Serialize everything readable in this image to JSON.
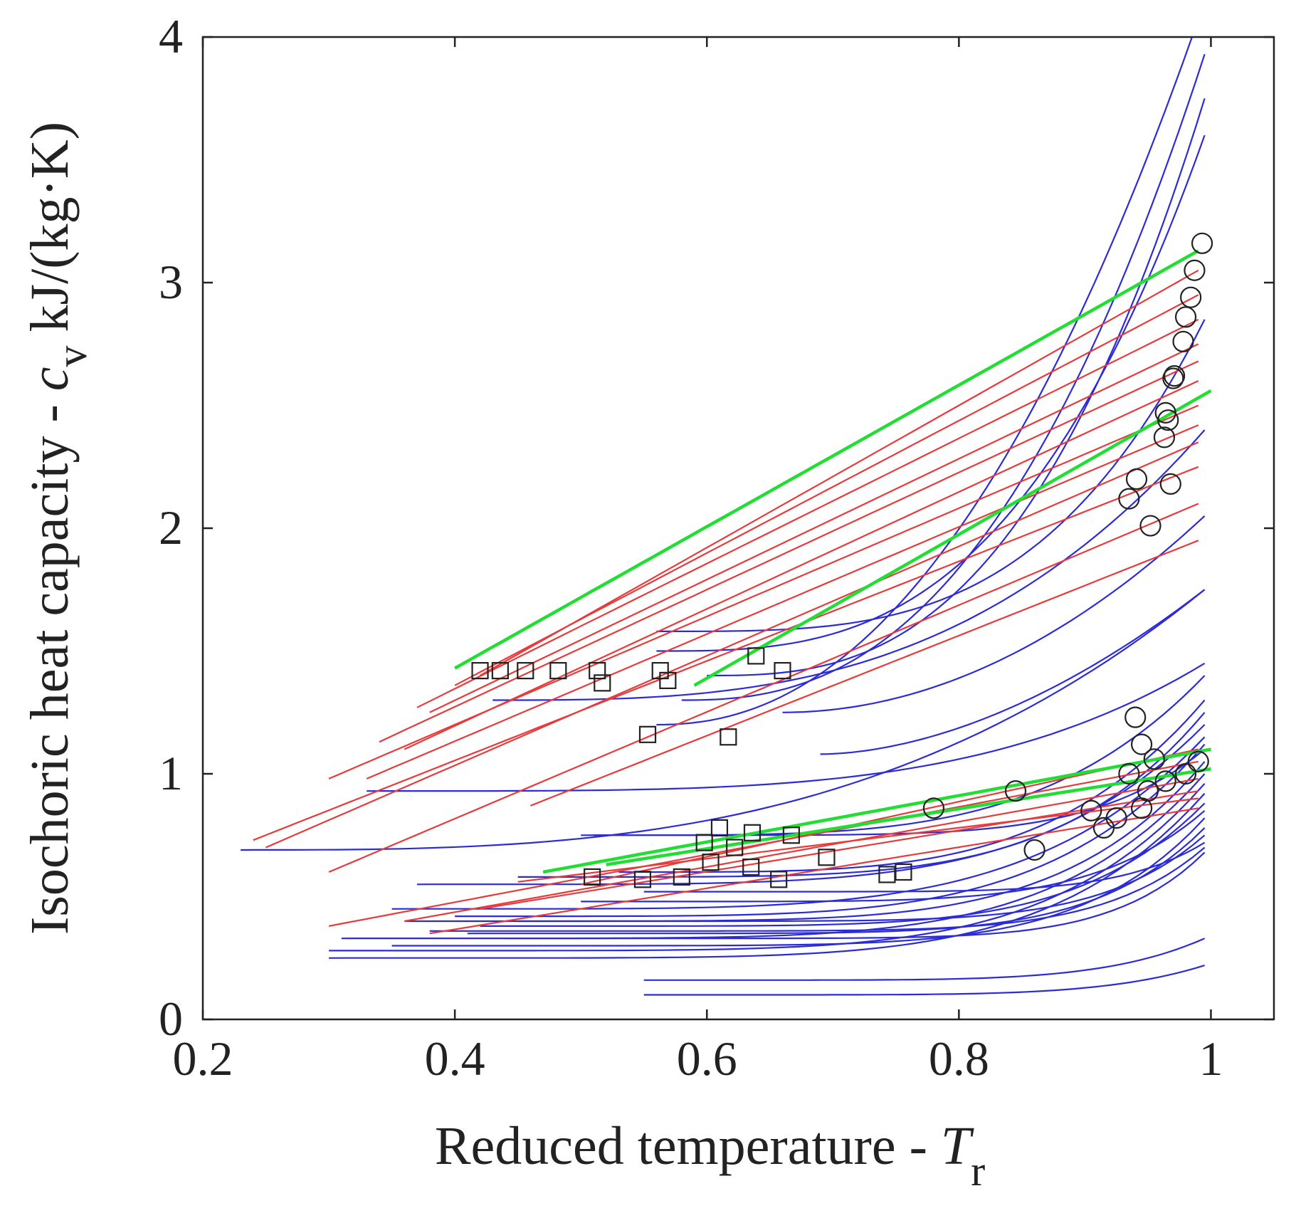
{
  "chart_data": {
    "type": "line",
    "xlabel": {
      "text": "Reduced temperature - ",
      "symbol": "T",
      "subscript": "r"
    },
    "ylabel": {
      "text": "Isochoric heat capacity - ",
      "symbol": "c",
      "subscript": "v",
      "unit": " kJ/(kg·K)"
    },
    "xlim": [
      0.2,
      1.05
    ],
    "ylim": [
      0,
      4
    ],
    "xticks": [
      0.2,
      0.4,
      0.6,
      0.8,
      1.0
    ],
    "xtick_labels": [
      "0.2",
      "0.4",
      "0.6",
      "0.8",
      "1"
    ],
    "yticks": [
      0,
      1,
      2,
      3,
      4
    ],
    "ytick_labels": [
      "0",
      "1",
      "2",
      "3",
      "4"
    ],
    "grid": false,
    "colors": {
      "blue": "#2b2bd9",
      "red": "#e83a3a",
      "green": "#22dd33",
      "marker": "#222222",
      "frame": "#222222"
    },
    "series": [
      {
        "name": "green-1",
        "color": "green",
        "kind": "linear",
        "x0": 0.4,
        "y0": 1.43,
        "x1": 0.99,
        "y1": 3.13
      },
      {
        "name": "green-2",
        "color": "green",
        "kind": "linear",
        "x0": 0.59,
        "y0": 1.36,
        "x1": 1.0,
        "y1": 2.56
      },
      {
        "name": "green-3",
        "color": "green",
        "kind": "linear",
        "x0": 0.47,
        "y0": 0.6,
        "x1": 1.0,
        "y1": 1.1
      },
      {
        "name": "green-4",
        "color": "green",
        "kind": "linear",
        "x0": 0.52,
        "y0": 0.63,
        "x1": 1.0,
        "y1": 1.02
      },
      {
        "name": "red-1",
        "color": "red",
        "kind": "linear",
        "x0": 0.42,
        "y0": 1.4,
        "x1": 0.99,
        "y1": 3.05
      },
      {
        "name": "red-2",
        "color": "red",
        "kind": "linear",
        "x0": 0.4,
        "y0": 1.36,
        "x1": 0.99,
        "y1": 2.95
      },
      {
        "name": "red-3",
        "color": "red",
        "kind": "linear",
        "x0": 0.37,
        "y0": 1.27,
        "x1": 0.99,
        "y1": 2.85
      },
      {
        "name": "red-4",
        "color": "red",
        "kind": "linear",
        "x0": 0.38,
        "y0": 1.25,
        "x1": 0.99,
        "y1": 2.75
      },
      {
        "name": "red-5",
        "color": "red",
        "kind": "linear",
        "x0": 0.34,
        "y0": 1.13,
        "x1": 0.99,
        "y1": 2.68
      },
      {
        "name": "red-6",
        "color": "red",
        "kind": "linear",
        "x0": 0.36,
        "y0": 1.1,
        "x1": 0.99,
        "y1": 2.6
      },
      {
        "name": "red-7",
        "color": "red",
        "kind": "linear",
        "x0": 0.3,
        "y0": 0.98,
        "x1": 0.99,
        "y1": 2.5
      },
      {
        "name": "red-8",
        "color": "red",
        "kind": "linear",
        "x0": 0.33,
        "y0": 0.98,
        "x1": 0.99,
        "y1": 2.42
      },
      {
        "name": "red-9",
        "color": "red",
        "kind": "linear",
        "x0": 0.25,
        "y0": 0.7,
        "x1": 0.99,
        "y1": 2.35
      },
      {
        "name": "red-10",
        "color": "red",
        "kind": "linear",
        "x0": 0.24,
        "y0": 0.73,
        "x1": 0.99,
        "y1": 2.25
      },
      {
        "name": "red-11",
        "color": "red",
        "kind": "linear",
        "x0": 0.3,
        "y0": 0.6,
        "x1": 0.99,
        "y1": 2.1
      },
      {
        "name": "red-12",
        "color": "red",
        "kind": "linear",
        "x0": 0.46,
        "y0": 0.87,
        "x1": 0.99,
        "y1": 1.95
      },
      {
        "name": "red-13",
        "color": "red",
        "kind": "linear",
        "x0": 0.5,
        "y0": 0.55,
        "x1": 0.99,
        "y1": 1.1
      },
      {
        "name": "red-14",
        "color": "red",
        "kind": "linear",
        "x0": 0.3,
        "y0": 0.38,
        "x1": 0.99,
        "y1": 1.05
      },
      {
        "name": "red-15",
        "color": "red",
        "kind": "linear",
        "x0": 0.36,
        "y0": 0.4,
        "x1": 0.99,
        "y1": 0.98
      },
      {
        "name": "red-16",
        "color": "red",
        "kind": "linear",
        "x0": 0.42,
        "y0": 0.45,
        "x1": 0.99,
        "y1": 0.93
      },
      {
        "name": "red-17",
        "color": "red",
        "kind": "linear",
        "x0": 0.45,
        "y0": 0.56,
        "x1": 0.99,
        "y1": 0.9
      },
      {
        "name": "red-18",
        "color": "red",
        "kind": "linear",
        "x0": 0.38,
        "y0": 0.35,
        "x1": 0.99,
        "y1": 0.86
      },
      {
        "name": "blue-1",
        "color": "blue",
        "kind": "power",
        "x0": 0.56,
        "y0": 1.2,
        "x1": 0.985,
        "y1": 4.0,
        "p": 2.2
      },
      {
        "name": "blue-2",
        "color": "blue",
        "kind": "power",
        "x0": 0.58,
        "y0": 1.3,
        "x1": 0.995,
        "y1": 3.93,
        "p": 2.5
      },
      {
        "name": "blue-3",
        "color": "blue",
        "kind": "power",
        "x0": 0.6,
        "y0": 1.4,
        "x1": 0.995,
        "y1": 3.75,
        "p": 2.8
      },
      {
        "name": "blue-4",
        "color": "blue",
        "kind": "power",
        "x0": 0.56,
        "y0": 1.5,
        "x1": 0.995,
        "y1": 3.6,
        "p": 3.0
      },
      {
        "name": "blue-5",
        "color": "blue",
        "kind": "power",
        "x0": 0.56,
        "y0": 1.58,
        "x1": 0.995,
        "y1": 2.85,
        "p": 3.5
      },
      {
        "name": "blue-6",
        "color": "blue",
        "kind": "power",
        "x0": 0.43,
        "y0": 1.3,
        "x1": 0.995,
        "y1": 2.4,
        "p": 3.0
      },
      {
        "name": "blue-7",
        "color": "blue",
        "kind": "power",
        "x0": 0.66,
        "y0": 1.25,
        "x1": 0.995,
        "y1": 2.05,
        "p": 2.0
      },
      {
        "name": "blue-8",
        "color": "blue",
        "kind": "power",
        "x0": 0.69,
        "y0": 1.08,
        "x1": 0.995,
        "y1": 1.75,
        "p": 1.8
      },
      {
        "name": "blue-9",
        "color": "blue",
        "kind": "power",
        "x0": 0.23,
        "y0": 0.69,
        "x1": 0.995,
        "y1": 1.75,
        "p": 3.0
      },
      {
        "name": "blue-10",
        "color": "blue",
        "kind": "power",
        "x0": 0.33,
        "y0": 0.93,
        "x1": 0.995,
        "y1": 1.45,
        "p": 4.0
      },
      {
        "name": "blue-11",
        "color": "blue",
        "kind": "power",
        "x0": 0.51,
        "y0": 0.75,
        "x1": 0.995,
        "y1": 1.4,
        "p": 4.0
      },
      {
        "name": "blue-12",
        "color": "blue",
        "kind": "power",
        "x0": 0.53,
        "y0": 0.6,
        "x1": 0.995,
        "y1": 1.3,
        "p": 4.0
      },
      {
        "name": "blue-13",
        "color": "blue",
        "kind": "power",
        "x0": 0.45,
        "y0": 0.58,
        "x1": 0.995,
        "y1": 1.25,
        "p": 5.0
      },
      {
        "name": "blue-14",
        "color": "blue",
        "kind": "power",
        "x0": 0.37,
        "y0": 0.55,
        "x1": 0.995,
        "y1": 1.2,
        "p": 5.0
      },
      {
        "name": "blue-15",
        "color": "blue",
        "kind": "power",
        "x0": 0.35,
        "y0": 0.45,
        "x1": 0.995,
        "y1": 1.15,
        "p": 5.0
      },
      {
        "name": "blue-16",
        "color": "blue",
        "kind": "power",
        "x0": 0.4,
        "y0": 0.42,
        "x1": 0.995,
        "y1": 1.12,
        "p": 5.0
      },
      {
        "name": "blue-17",
        "color": "blue",
        "kind": "power",
        "x0": 0.36,
        "y0": 0.4,
        "x1": 0.995,
        "y1": 1.05,
        "p": 6.0
      },
      {
        "name": "blue-18",
        "color": "blue",
        "kind": "power",
        "x0": 0.31,
        "y0": 0.33,
        "x1": 0.995,
        "y1": 1.0,
        "p": 6.0
      },
      {
        "name": "blue-19",
        "color": "blue",
        "kind": "power",
        "x0": 0.3,
        "y0": 0.28,
        "x1": 0.995,
        "y1": 0.96,
        "p": 6.0
      },
      {
        "name": "blue-20",
        "color": "blue",
        "kind": "power",
        "x0": 0.3,
        "y0": 0.25,
        "x1": 0.995,
        "y1": 0.92,
        "p": 6.0
      },
      {
        "name": "blue-21",
        "color": "blue",
        "kind": "power",
        "x0": 0.42,
        "y0": 0.38,
        "x1": 0.995,
        "y1": 0.88,
        "p": 6.0
      },
      {
        "name": "blue-22",
        "color": "blue",
        "kind": "power",
        "x0": 0.5,
        "y0": 0.48,
        "x1": 0.995,
        "y1": 0.85,
        "p": 6.0
      },
      {
        "name": "blue-23",
        "color": "blue",
        "kind": "power",
        "x0": 0.35,
        "y0": 0.3,
        "x1": 0.995,
        "y1": 0.82,
        "p": 7.0
      },
      {
        "name": "blue-24",
        "color": "blue",
        "kind": "power",
        "x0": 0.41,
        "y0": 0.35,
        "x1": 0.995,
        "y1": 0.78,
        "p": 7.0
      },
      {
        "name": "blue-25",
        "color": "blue",
        "kind": "power",
        "x0": 0.45,
        "y0": 0.4,
        "x1": 0.995,
        "y1": 0.75,
        "p": 7.0
      },
      {
        "name": "blue-26",
        "color": "blue",
        "kind": "power",
        "x0": 0.55,
        "y0": 0.52,
        "x1": 0.995,
        "y1": 0.72,
        "p": 7.0
      },
      {
        "name": "blue-27",
        "color": "blue",
        "kind": "power",
        "x0": 0.38,
        "y0": 0.36,
        "x1": 0.995,
        "y1": 0.7,
        "p": 8.0
      },
      {
        "name": "blue-28",
        "color": "blue",
        "kind": "power",
        "x0": 0.44,
        "y0": 0.33,
        "x1": 0.995,
        "y1": 0.68,
        "p": 8.0
      },
      {
        "name": "blue-29",
        "color": "blue",
        "kind": "power",
        "x0": 0.5,
        "y0": 0.75,
        "x1": 0.995,
        "y1": 1.1,
        "p": 6.0
      },
      {
        "name": "blue-30",
        "color": "blue",
        "kind": "power",
        "x0": 0.55,
        "y0": 0.16,
        "x1": 0.995,
        "y1": 0.33,
        "p": 6.0
      },
      {
        "name": "blue-31",
        "color": "blue",
        "kind": "power",
        "x0": 0.55,
        "y0": 0.1,
        "x1": 0.995,
        "y1": 0.22,
        "p": 6.0
      }
    ],
    "squares": [
      [
        0.42,
        1.42
      ],
      [
        0.436,
        1.42
      ],
      [
        0.456,
        1.42
      ],
      [
        0.482,
        1.42
      ],
      [
        0.513,
        1.42
      ],
      [
        0.517,
        1.37
      ],
      [
        0.563,
        1.42
      ],
      [
        0.569,
        1.38
      ],
      [
        0.639,
        1.48
      ],
      [
        0.66,
        1.42
      ],
      [
        0.553,
        1.16
      ],
      [
        0.617,
        1.15
      ],
      [
        0.509,
        0.58
      ],
      [
        0.549,
        0.57
      ],
      [
        0.58,
        0.58
      ],
      [
        0.598,
        0.72
      ],
      [
        0.61,
        0.78
      ],
      [
        0.603,
        0.64
      ],
      [
        0.622,
        0.7
      ],
      [
        0.636,
        0.76
      ],
      [
        0.635,
        0.62
      ],
      [
        0.657,
        0.57
      ],
      [
        0.667,
        0.75
      ],
      [
        0.695,
        0.66
      ],
      [
        0.743,
        0.59
      ],
      [
        0.756,
        0.6
      ]
    ],
    "circles": [
      [
        0.993,
        3.16
      ],
      [
        0.987,
        3.05
      ],
      [
        0.984,
        2.94
      ],
      [
        0.98,
        2.86
      ],
      [
        0.978,
        2.76
      ],
      [
        0.971,
        2.62
      ],
      [
        0.97,
        2.61
      ],
      [
        0.964,
        2.47
      ],
      [
        0.966,
        2.44
      ],
      [
        0.963,
        2.37
      ],
      [
        0.941,
        2.2
      ],
      [
        0.935,
        2.12
      ],
      [
        0.968,
        2.18
      ],
      [
        0.952,
        2.01
      ],
      [
        0.94,
        1.23
      ],
      [
        0.945,
        1.12
      ],
      [
        0.955,
        1.06
      ],
      [
        0.935,
        1.0
      ],
      [
        0.964,
        0.97
      ],
      [
        0.98,
        1.0
      ],
      [
        0.99,
        1.05
      ],
      [
        0.95,
        0.93
      ],
      [
        0.945,
        0.86
      ],
      [
        0.925,
        0.82
      ],
      [
        0.905,
        0.85
      ],
      [
        0.915,
        0.78
      ],
      [
        0.845,
        0.93
      ],
      [
        0.78,
        0.86
      ],
      [
        0.86,
        0.69
      ]
    ]
  }
}
